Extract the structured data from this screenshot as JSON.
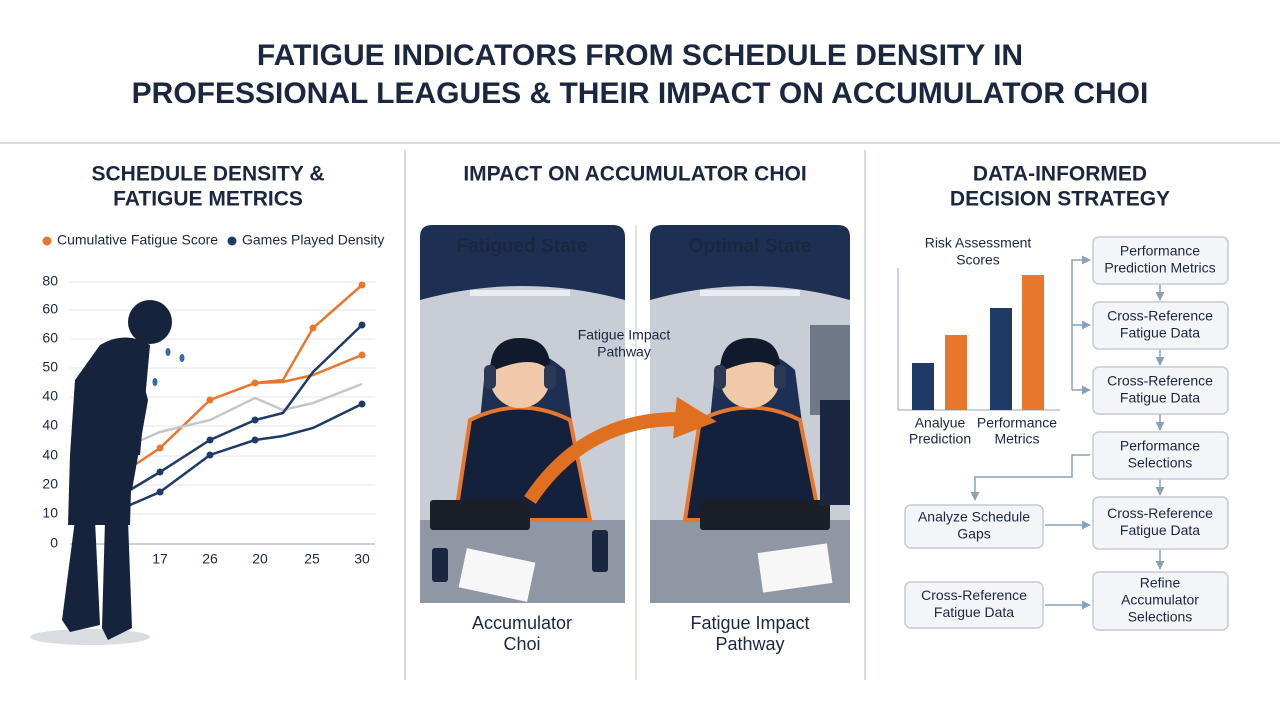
{
  "title": [
    "FATIGUE INDICATORS FROM SCHEDULE DENSITY IN",
    "PROFESSIONAL LEAGUES & THEIR IMPACT ON ACCUMULATOR CHOI"
  ],
  "left_panel": {
    "heading": [
      "SCHEDULE DENSITY &",
      "FATIGUE METRICS"
    ],
    "legend": [
      "Cumulative Fatigue Score",
      "Games Played Density"
    ],
    "y_labels": [
      80,
      60,
      60,
      50,
      40,
      40,
      40,
      20,
      10,
      0
    ],
    "x_labels": [
      17,
      26,
      20,
      25,
      30
    ]
  },
  "middle_panel": {
    "heading": "IMPACT ON ACCUMULATOR CHOI",
    "panels": [
      {
        "title": "Fatigued State",
        "caption": [
          "Accumulator",
          "Choi"
        ]
      },
      {
        "title": "Optimal State",
        "caption": [
          "Fatigue Impact",
          "Pathway"
        ]
      }
    ],
    "pathway_label": [
      "Fatigue Impact",
      "Pathway"
    ]
  },
  "right_panel": {
    "heading": [
      "DATA-INFORMED",
      "DECISION STRATEGY"
    ],
    "chart_label": [
      "Risk Assessment",
      "Scores"
    ],
    "bar_labels": [
      [
        "Analyue",
        "Prediction"
      ],
      [
        "Performance",
        "Metrics"
      ]
    ],
    "flow_boxes": [
      [
        "Performance",
        "Prediction Metrics"
      ],
      [
        "Cross-Reference",
        "Fatigue Data"
      ],
      [
        "Cross-Reference",
        "Fatigue Data"
      ],
      [
        "Performance",
        "Selections"
      ],
      [
        "Cross-Reference",
        "Fatigue Data"
      ],
      [
        "Refine",
        "Accumulator",
        "Selections"
      ]
    ],
    "side_boxes": [
      [
        "Analyze Schedule",
        "Gaps"
      ],
      [
        "Cross-Reference",
        "Fatigue Data"
      ]
    ]
  }
}
